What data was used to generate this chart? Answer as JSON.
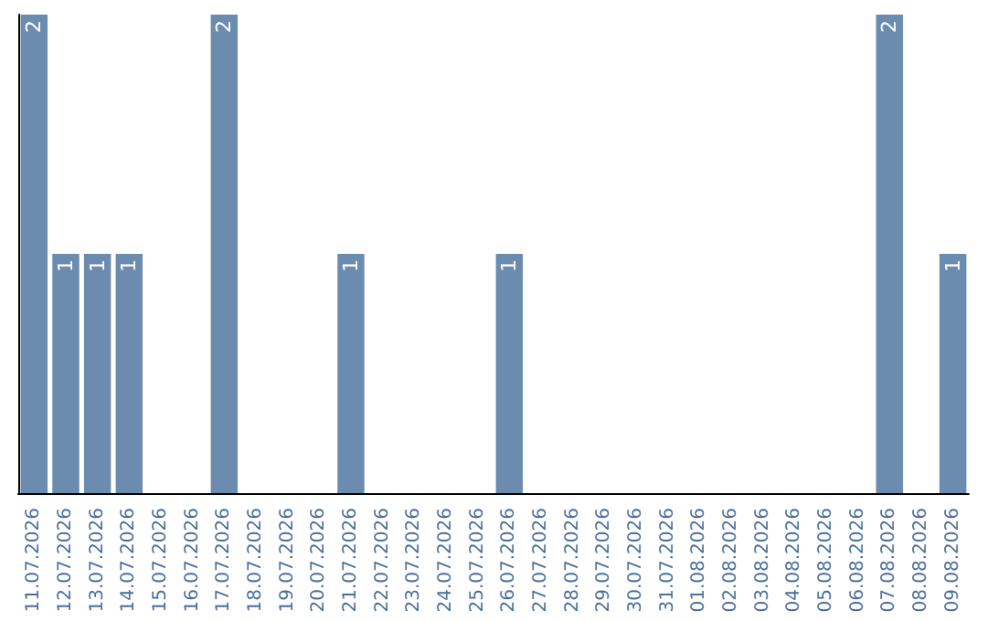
{
  "chart_data": {
    "type": "bar",
    "categories": [
      "11.07.2026",
      "12.07.2026",
      "13.07.2026",
      "14.07.2026",
      "15.07.2026",
      "16.07.2026",
      "17.07.2026",
      "18.07.2026",
      "19.07.2026",
      "20.07.2026",
      "21.07.2026",
      "22.07.2026",
      "23.07.2026",
      "24.07.2026",
      "25.07.2026",
      "26.07.2026",
      "27.07.2026",
      "28.07.2026",
      "29.07.2026",
      "30.07.2026",
      "31.07.2026",
      "01.08.2026",
      "02.08.2026",
      "03.08.2026",
      "04.08.2026",
      "05.08.2026",
      "06.08.2026",
      "07.08.2026",
      "08.08.2026",
      "09.08.2026"
    ],
    "values": [
      2,
      1,
      1,
      1,
      0,
      0,
      2,
      0,
      0,
      0,
      1,
      0,
      0,
      0,
      0,
      1,
      0,
      0,
      0,
      0,
      0,
      0,
      0,
      0,
      0,
      0,
      0,
      2,
      0,
      1
    ],
    "color": "#6b8cae",
    "value_labels": [
      "2",
      "1",
      "1",
      "1",
      null,
      null,
      "2",
      null,
      null,
      null,
      "1",
      null,
      null,
      null,
      null,
      "1",
      null,
      null,
      null,
      null,
      null,
      null,
      null,
      null,
      null,
      null,
      null,
      "2",
      null,
      "1"
    ],
    "tick_labels": "x",
    "grid": false
  }
}
